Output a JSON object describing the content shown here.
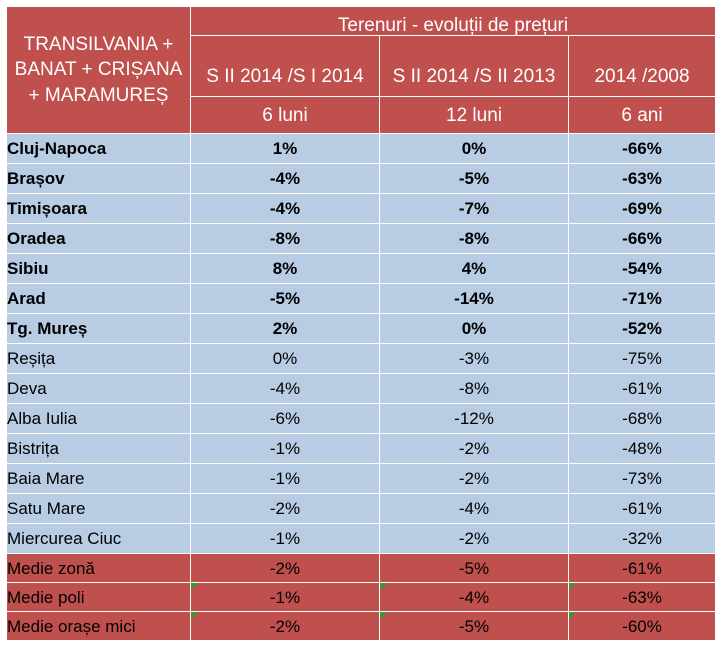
{
  "header": {
    "region": "TRANSILVANIA + BANAT + CRIȘANA + MARAMUREȘ",
    "group_title": "Terenuri - evoluții de prețuri",
    "columns": [
      {
        "label": "S II 2014 /S I 2014",
        "sub": "6 luni"
      },
      {
        "label": "S II 2014 /S II 2013",
        "sub": "12 luni"
      },
      {
        "label": "2014 /2008",
        "sub": "6 ani"
      }
    ]
  },
  "rows": [
    {
      "city": "Cluj-Napoca",
      "v1": "1%",
      "v2": "0%",
      "v3": "-66%"
    },
    {
      "city": "Brașov",
      "v1": "-4%",
      "v2": "-5%",
      "v3": "-63%"
    },
    {
      "city": "Timișoara",
      "v1": "-4%",
      "v2": "-7%",
      "v3": "-69%"
    },
    {
      "city": "Oradea",
      "v1": "-8%",
      "v2": "-8%",
      "v3": "-66%"
    },
    {
      "city": "Sibiu",
      "v1": "8%",
      "v2": "4%",
      "v3": "-54%"
    },
    {
      "city": "Arad",
      "v1": "-5%",
      "v2": "-14%",
      "v3": "-71%"
    },
    {
      "city": "Tg. Mureș",
      "v1": "2%",
      "v2": "0%",
      "v3": "-52%"
    },
    {
      "city": "Reșița",
      "v1": "0%",
      "v2": "-3%",
      "v3": "-75%"
    },
    {
      "city": "Deva",
      "v1": "-4%",
      "v2": "-8%",
      "v3": "-61%"
    },
    {
      "city": "Alba Iulia",
      "v1": "-6%",
      "v2": "-12%",
      "v3": "-68%"
    },
    {
      "city": "Bistrița",
      "v1": "-1%",
      "v2": "-2%",
      "v3": "-48%"
    },
    {
      "city": "Baia Mare",
      "v1": "-1%",
      "v2": "-2%",
      "v3": "-73%"
    },
    {
      "city": "Satu Mare",
      "v1": "-2%",
      "v2": "-4%",
      "v3": "-61%"
    },
    {
      "city": "Miercurea Ciuc",
      "v1": "-1%",
      "v2": "-2%",
      "v3": "-32%"
    }
  ],
  "summary": [
    {
      "label": "Medie zonă",
      "v1": "-2%",
      "v2": "-5%",
      "v3": "-61%"
    },
    {
      "label": "Medie poli",
      "v1": "-1%",
      "v2": "-4%",
      "v3": "-63%"
    },
    {
      "label": "Medie orașe mici",
      "v1": "-2%",
      "v2": "-5%",
      "v3": "-60%"
    }
  ],
  "colors": {
    "header_bg": "#c0504d",
    "body_bg": "#b8cce4",
    "error_indicator": "#2e9b2e"
  }
}
